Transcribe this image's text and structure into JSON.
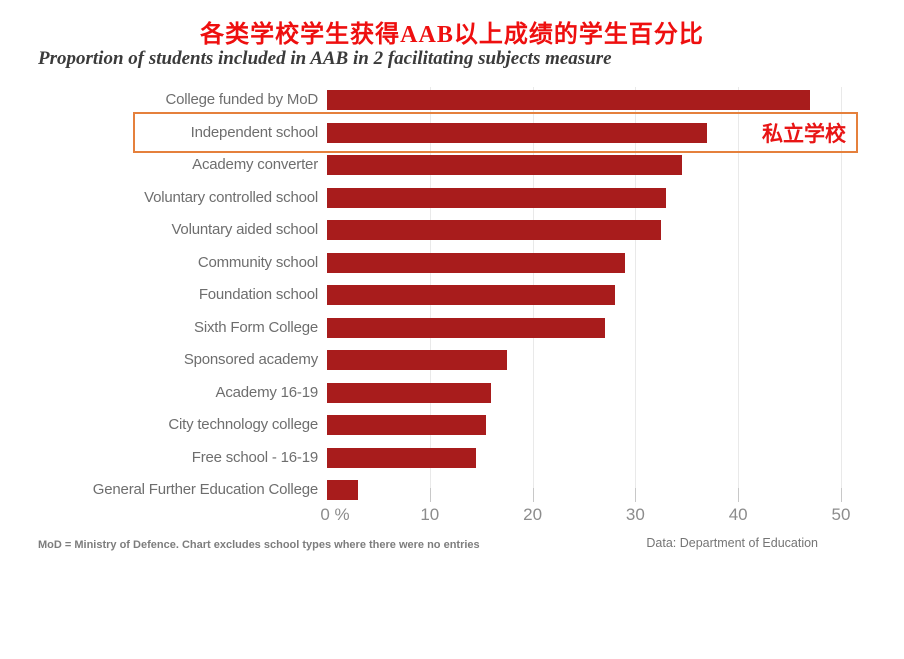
{
  "page": {
    "title_zh": "各类学校学生获得AAB以上成绩的学生百分比",
    "subtitle": "Proportion of students included in AAB in 2 facilitating subjects measure",
    "footnote": "MoD = Ministry of Defence. Chart excludes school types where there were no entries",
    "source": "Data: Department of Education"
  },
  "annotation": {
    "label": "私立学校",
    "highlighted_category": "Independent school"
  },
  "colors": {
    "bar": "#a81c1c",
    "title_red": "#ee0f0f",
    "annotation_red": "#e81515",
    "highlight_border": "#e5803c",
    "subtitle_gray": "#3b3b3b"
  },
  "chart_data": {
    "type": "bar",
    "orientation": "horizontal",
    "title": "各类学校学生获得AAB以上成绩的学生百分比",
    "subtitle": "Proportion of students included in AAB in 2 facilitating subjects measure",
    "categories": [
      "College funded by MoD",
      "Independent school",
      "Academy converter",
      "Voluntary controlled school",
      "Voluntary aided school",
      "Community school",
      "Foundation school",
      "Sixth Form College",
      "Sponsored academy",
      "Academy 16-19",
      "City technology college",
      "Free school - 16-19",
      "General Further Education College"
    ],
    "values": [
      47,
      37,
      34.5,
      33,
      32.5,
      29,
      28,
      27,
      17.5,
      16,
      15.5,
      14.5,
      3
    ],
    "xlabel": "%",
    "ylabel": "",
    "xlim": [
      0,
      50
    ],
    "xticks": [
      0,
      10,
      20,
      30,
      40,
      50
    ],
    "xtick_labels": [
      "0 %",
      "10",
      "20",
      "30",
      "40",
      "50"
    ],
    "grid": true,
    "legend": false,
    "highlight_index": 1
  }
}
